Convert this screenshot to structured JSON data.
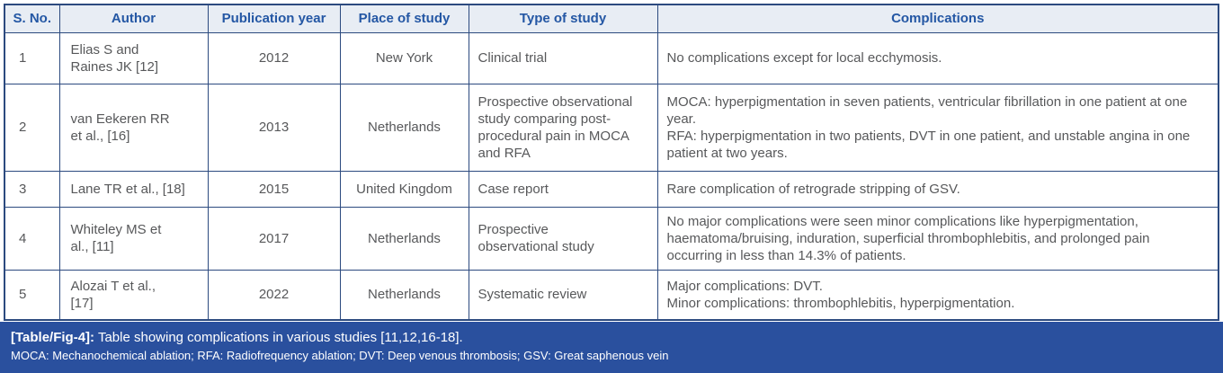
{
  "table": {
    "columns": [
      "S. No.",
      "Author",
      "Publication year",
      "Place of study",
      "Type of study",
      "Complications"
    ],
    "rows": [
      {
        "sno": "1",
        "author": "Elias S and\nRaines JK [12]",
        "year": "2012",
        "place": "New York",
        "type": "Clinical trial",
        "complications": "No complications except for local ecchymosis."
      },
      {
        "sno": "2",
        "author": "van Eekeren RR\net al., [16]",
        "year": "2013",
        "place": "Netherlands",
        "type": "Prospective observational study comparing post-procedural pain in MOCA and RFA",
        "complications": "MOCA: hyperpigmentation in seven patients, ventricular fibrillation in one patient at one year.\nRFA: hyperpigmentation in two patients, DVT in one patient, and unstable angina in one patient at two years."
      },
      {
        "sno": "3",
        "author": "Lane TR et al., [18]",
        "year": "2015",
        "place": "United Kingdom",
        "type": "Case report",
        "complications": "Rare complication of retrograde stripping of GSV."
      },
      {
        "sno": "4",
        "author": "Whiteley MS et\nal., [11]",
        "year": "2017",
        "place": "Netherlands",
        "type": "Prospective\nobservational study",
        "complications": "No major complications were seen minor complications like hyperpigmentation, haematoma/bruising, induration, superficial thrombophlebitis, and prolonged pain occurring in less than 14.3% of patients."
      },
      {
        "sno": "5",
        "author": "Alozai T et al.,\n[17]",
        "year": "2022",
        "place": "Netherlands",
        "type": "Systematic review",
        "complications": "Major complications: DVT.\nMinor complications: thrombophlebitis, hyperpigmentation."
      }
    ]
  },
  "caption": {
    "label": "[Table/Fig-4]:",
    "text": " Table showing complications in various studies [11,12,16-18].",
    "abbreviations": "MOCA: Mechanochemical ablation; RFA: Radiofrequency ablation; DVT: Deep venous thrombosis; GSV: Great saphenous vein"
  },
  "colors": {
    "border": "#2c4a7f",
    "header_bg": "#e8edf4",
    "header_text": "#2457a4",
    "body_text": "#57585a",
    "caption_bg": "#2a509e",
    "caption_text": "#ffffff"
  }
}
